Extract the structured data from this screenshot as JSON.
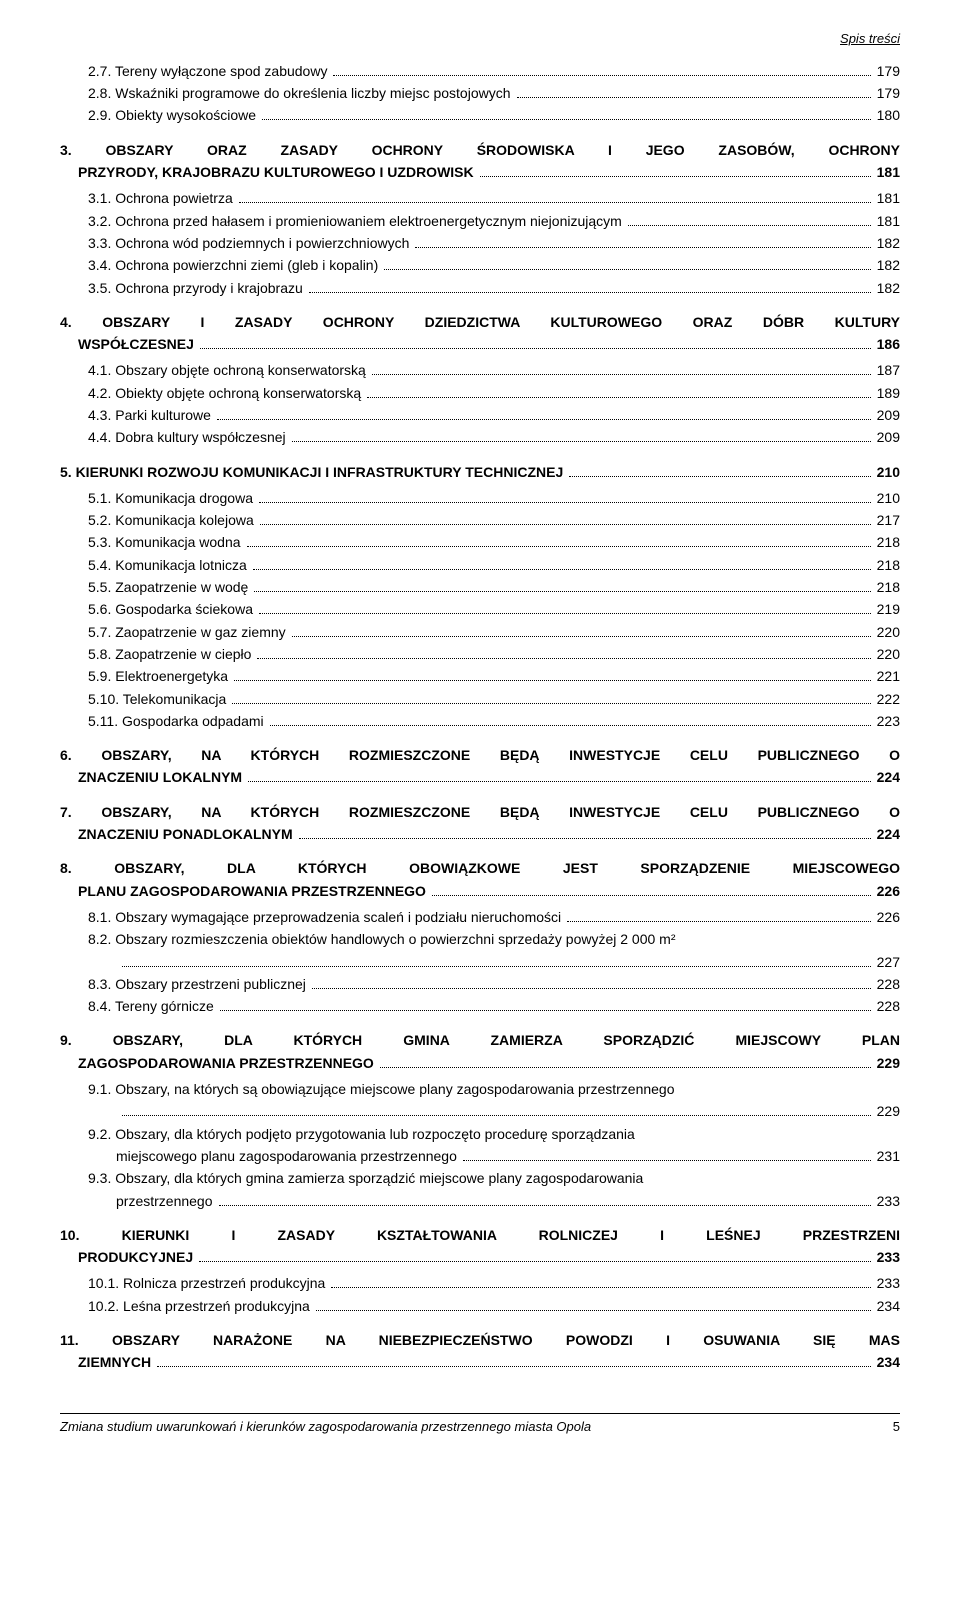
{
  "header": {
    "running_title": "Spis treści"
  },
  "sections": [
    {
      "type": "sub",
      "items": [
        {
          "label": "2.7. Tereny wyłączone spod zabudowy",
          "page": "179"
        },
        {
          "label": "2.8. Wskaźniki programowe do określenia liczby miejsc postojowych",
          "page": "179"
        },
        {
          "label": "2.9. Obiekty wysokościowe",
          "page": "180"
        }
      ]
    },
    {
      "type": "main",
      "label_lines": [
        "3. OBSZARY ORAZ ZASADY OCHRONY ŚRODOWISKA I JEGO ZASOBÓW, OCHRONY"
      ],
      "label_last": "PRZYRODY, KRAJOBRAZU KULTUROWEGO I UZDROWISK",
      "page": "181",
      "items": [
        {
          "label": "3.1. Ochrona powietrza",
          "page": "181"
        },
        {
          "label": "3.2. Ochrona przed hałasem i promieniowaniem elektroenergetycznym niejonizującym",
          "page": "181"
        },
        {
          "label": "3.3. Ochrona wód podziemnych i powierzchniowych",
          "page": "182"
        },
        {
          "label": "3.4. Ochrona powierzchni ziemi (gleb i kopalin)",
          "page": "182"
        },
        {
          "label": "3.5. Ochrona przyrody i krajobrazu",
          "page": "182"
        }
      ]
    },
    {
      "type": "main",
      "label_lines": [
        "4. OBSZARY I ZASADY OCHRONY DZIEDZICTWA KULTUROWEGO ORAZ DÓBR KULTURY"
      ],
      "label_last": "WSPÓŁCZESNEJ",
      "page": "186",
      "items": [
        {
          "label": "4.1. Obszary objęte ochroną konserwatorską",
          "page": "187"
        },
        {
          "label": "4.2. Obiekty objęte ochroną konserwatorską",
          "page": "189"
        },
        {
          "label": "4.3. Parki kulturowe",
          "page": "209"
        },
        {
          "label": "4.4. Dobra kultury współczesnej",
          "page": "209"
        }
      ]
    },
    {
      "type": "main_single",
      "label": "5. KIERUNKI ROZWOJU KOMUNIKACJI I INFRASTRUKTURY TECHNICZNEJ",
      "page": "210",
      "items": [
        {
          "label": "5.1. Komunikacja drogowa",
          "page": "210"
        },
        {
          "label": "5.2. Komunikacja kolejowa",
          "page": "217"
        },
        {
          "label": "5.3. Komunikacja wodna",
          "page": "218"
        },
        {
          "label": "5.4. Komunikacja lotnicza",
          "page": "218"
        },
        {
          "label": "5.5. Zaopatrzenie w wodę",
          "page": "218"
        },
        {
          "label": "5.6. Gospodarka ściekowa",
          "page": "219"
        },
        {
          "label": "5.7. Zaopatrzenie w gaz ziemny",
          "page": "220"
        },
        {
          "label": "5.8. Zaopatrzenie w ciepło",
          "page": "220"
        },
        {
          "label": "5.9. Elektroenergetyka",
          "page": "221"
        },
        {
          "label": "5.10. Telekomunikacja",
          "page": "222"
        },
        {
          "label": "5.11. Gospodarka odpadami",
          "page": "223"
        }
      ]
    },
    {
      "type": "main",
      "label_lines": [
        "6. OBSZARY, NA KTÓRYCH ROZMIESZCZONE BĘDĄ INWESTYCJE CELU PUBLICZNEGO O"
      ],
      "label_last": "ZNACZENIU LOKALNYM",
      "page": "224",
      "items": []
    },
    {
      "type": "main",
      "label_lines": [
        "7. OBSZARY, NA KTÓRYCH ROZMIESZCZONE BĘDĄ INWESTYCJE CELU PUBLICZNEGO O"
      ],
      "label_last": "ZNACZENIU PONADLOKALNYM",
      "page": "224",
      "items": []
    },
    {
      "type": "main",
      "label_lines": [
        "8. OBSZARY, DLA KTÓRYCH OBOWIĄZKOWE JEST SPORZĄDZENIE MIEJSCOWEGO"
      ],
      "label_last": "PLANU ZAGOSPODAROWANIA PRZESTRZENNEGO",
      "page": "226",
      "items": [
        {
          "label": "8.1. Obszary wymagające przeprowadzenia scaleń i podziału nieruchomości",
          "page": "226"
        },
        {
          "type": "wrap",
          "first": "8.2. Obszary rozmieszczenia obiektów handlowych o powierzchni sprzedaży powyżej 2 000 m²",
          "last": "",
          "page": "227"
        },
        {
          "label": "8.3. Obszary przestrzeni publicznej",
          "page": "228"
        },
        {
          "label": "8.4. Tereny górnicze",
          "page": "228"
        }
      ]
    },
    {
      "type": "main",
      "label_lines": [
        "9. OBSZARY, DLA KTÓRYCH GMINA ZAMIERZA SPORZĄDZIĆ MIEJSCOWY PLAN"
      ],
      "label_last": "ZAGOSPODAROWANIA PRZESTRZENNEGO",
      "page": "229",
      "items": [
        {
          "type": "wrap",
          "first": "9.1. Obszary, na których są obowiązujące miejscowe plany zagospodarowania przestrzennego",
          "last": "",
          "page": "229"
        },
        {
          "type": "wrap",
          "first": "9.2. Obszary, dla których podjęto przygotowania lub rozpoczęto procedurę sporządzania",
          "last": "miejscowego planu zagospodarowania przestrzennego",
          "page": "231"
        },
        {
          "type": "wrap",
          "first": "9.3. Obszary, dla których gmina zamierza sporządzić miejscowe plany zagospodarowania",
          "last": "przestrzennego",
          "page": "233"
        }
      ]
    },
    {
      "type": "main",
      "label_lines": [
        "10. KIERUNKI I ZASADY KSZTAŁTOWANIA ROLNICZEJ I LEŚNEJ PRZESTRZENI"
      ],
      "label_last": "PRODUKCYJNEJ",
      "page": "233",
      "items": [
        {
          "label": "10.1. Rolnicza przestrzeń produkcyjna",
          "page": "233"
        },
        {
          "label": "10.2. Leśna przestrzeń produkcyjna",
          "page": "234"
        }
      ]
    },
    {
      "type": "main",
      "label_lines": [
        "11. OBSZARY NARAŻONE NA NIEBEZPIECZEŃSTWO POWODZI I OSUWANIA SIĘ MAS"
      ],
      "label_last": "ZIEMNYCH",
      "page": "234",
      "items": []
    }
  ],
  "footer": {
    "text": "Zmiana studium uwarunkowań i kierunków zagospodarowania przestrzennego miasta Opola",
    "page": "5"
  }
}
